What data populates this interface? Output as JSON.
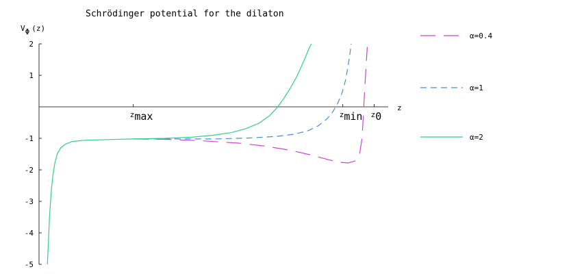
{
  "chart_data": {
    "type": "line",
    "title": "Schrödinger potential for the dilaton",
    "ylabel": {
      "base": "V",
      "sub": "Φ",
      "arg": "(z)"
    },
    "xlabel": "z",
    "xlim": [
      0,
      1
    ],
    "ylim": [
      -5,
      2
    ],
    "yticks": [
      {
        "value": 2,
        "label": "2"
      },
      {
        "value": 1,
        "label": "1"
      },
      {
        "value": -1,
        "label": "-1"
      },
      {
        "value": -2,
        "label": "-2"
      },
      {
        "value": -3,
        "label": "-3"
      },
      {
        "value": -4,
        "label": "-4"
      },
      {
        "value": -5,
        "label": "-5"
      }
    ],
    "xmarks": [
      {
        "name": "zmax",
        "base": "z",
        "sub": "max",
        "x": 0.27
      },
      {
        "name": "zmin",
        "base": "z",
        "sub": "min",
        "x": 0.87
      },
      {
        "name": "z0",
        "base": "z",
        "sub": "0",
        "x": 0.96
      }
    ],
    "legend_position": "right",
    "grid": false,
    "series": [
      {
        "name": "α=0.4",
        "color": "#cc44cc",
        "dash": "dash-long",
        "points": [
          [
            0.27,
            -1.02
          ],
          [
            0.36,
            -1.03
          ],
          [
            0.47,
            -1.08
          ],
          [
            0.57,
            -1.15
          ],
          [
            0.65,
            -1.25
          ],
          [
            0.72,
            -1.38
          ],
          [
            0.78,
            -1.53
          ],
          [
            0.83,
            -1.68
          ],
          [
            0.86,
            -1.76
          ],
          [
            0.885,
            -1.78
          ],
          [
            0.905,
            -1.72
          ],
          [
            0.918,
            -1.5
          ],
          [
            0.925,
            -1.0
          ],
          [
            0.928,
            -0.4
          ],
          [
            0.932,
            0.4
          ],
          [
            0.936,
            1.2
          ],
          [
            0.94,
            1.9
          ]
        ]
      },
      {
        "name": "α=1",
        "color": "#4a8bd6",
        "dash": "dash",
        "points": [
          [
            0.27,
            -1.02
          ],
          [
            0.38,
            -1.02
          ],
          [
            0.5,
            -1.02
          ],
          [
            0.6,
            -0.99
          ],
          [
            0.68,
            -0.94
          ],
          [
            0.73,
            -0.87
          ],
          [
            0.77,
            -0.76
          ],
          [
            0.8,
            -0.6
          ],
          [
            0.825,
            -0.38
          ],
          [
            0.84,
            -0.18
          ],
          [
            0.855,
            0.1
          ],
          [
            0.868,
            0.45
          ],
          [
            0.878,
            0.85
          ],
          [
            0.885,
            1.3
          ],
          [
            0.89,
            1.65
          ],
          [
            0.894,
            2.0
          ]
        ]
      },
      {
        "name": "α=2",
        "color": "#2ed187",
        "dash": "solid",
        "points": [
          [
            0.024,
            -5.0
          ],
          [
            0.026,
            -4.5
          ],
          [
            0.028,
            -4.0
          ],
          [
            0.03,
            -3.5
          ],
          [
            0.033,
            -3.0
          ],
          [
            0.036,
            -2.55
          ],
          [
            0.04,
            -2.15
          ],
          [
            0.045,
            -1.8
          ],
          [
            0.052,
            -1.5
          ],
          [
            0.062,
            -1.3
          ],
          [
            0.076,
            -1.18
          ],
          [
            0.095,
            -1.1
          ],
          [
            0.13,
            -1.06
          ],
          [
            0.2,
            -1.04
          ],
          [
            0.27,
            -1.02
          ],
          [
            0.36,
            -1.0
          ],
          [
            0.44,
            -0.96
          ],
          [
            0.5,
            -0.9
          ],
          [
            0.55,
            -0.82
          ],
          [
            0.59,
            -0.7
          ],
          [
            0.63,
            -0.52
          ],
          [
            0.66,
            -0.28
          ],
          [
            0.68,
            -0.05
          ],
          [
            0.7,
            0.25
          ],
          [
            0.72,
            0.6
          ],
          [
            0.74,
            1.0
          ],
          [
            0.76,
            1.5
          ],
          [
            0.775,
            1.9
          ],
          [
            0.78,
            2.0
          ]
        ]
      }
    ]
  }
}
